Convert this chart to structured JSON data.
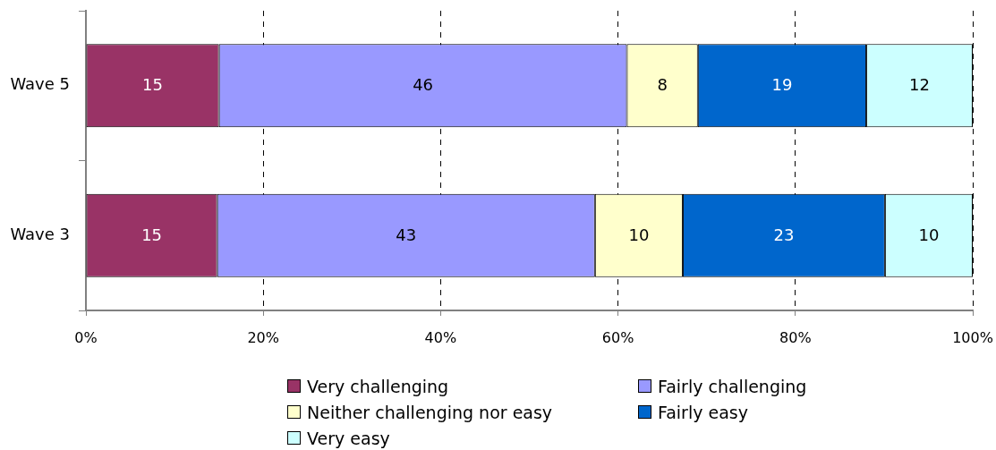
{
  "chart_data": {
    "type": "bar",
    "orientation": "horizontal",
    "stacked": true,
    "categories": [
      "Wave 5",
      "Wave 3"
    ],
    "series": [
      {
        "name": "Very challenging",
        "color": "#993366",
        "values": [
          15,
          14.8
        ],
        "value_labels": [
          "15",
          "15"
        ]
      },
      {
        "name": "Fairly challenging",
        "color": "#9999ff",
        "values": [
          46,
          42.6
        ],
        "value_labels": [
          "46",
          "43"
        ]
      },
      {
        "name": "Neither challenging nor easy",
        "color": "#ffffcc",
        "values": [
          8,
          9.9
        ],
        "value_labels": [
          "8",
          "10"
        ]
      },
      {
        "name": "Fairly easy",
        "color": "#0066cc",
        "values": [
          19,
          22.8
        ],
        "value_labels": [
          "19",
          "23"
        ]
      },
      {
        "name": "Very easy",
        "color": "#ccffff",
        "values": [
          12,
          9.9
        ],
        "value_labels": [
          "12",
          "10"
        ]
      }
    ],
    "xlim": [
      0,
      100
    ],
    "xticks": [
      {
        "value": 0,
        "label": "0%"
      },
      {
        "value": 20,
        "label": "20%"
      },
      {
        "value": 40,
        "label": "40%"
      },
      {
        "value": 60,
        "label": "60%"
      },
      {
        "value": 80,
        "label": "80%"
      },
      {
        "value": 100,
        "label": "100%"
      }
    ],
    "grid": "x",
    "legend": "bottom"
  }
}
